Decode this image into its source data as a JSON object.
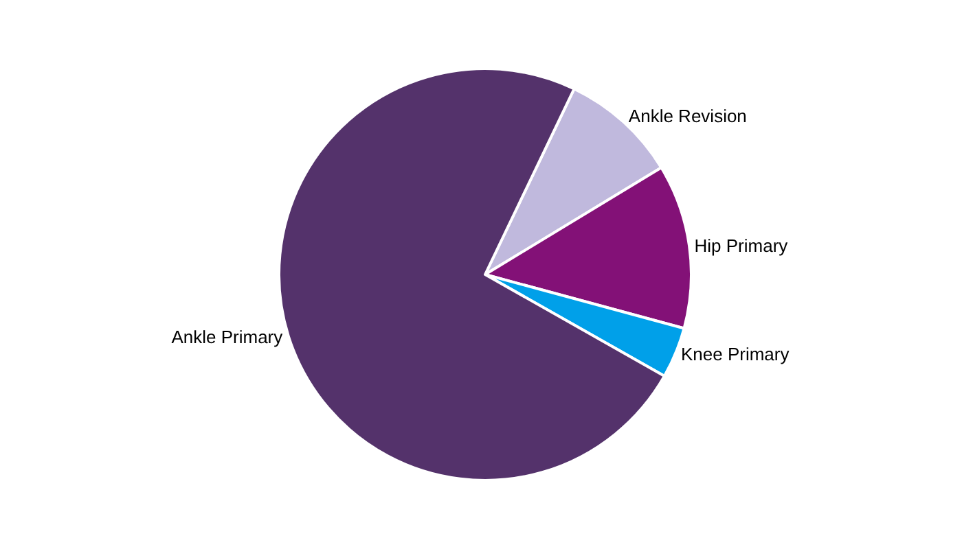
{
  "chart_data": {
    "type": "pie",
    "categories": [
      "Ankle Revision",
      "Hip Primary",
      "Knee Primary",
      "Ankle Primary"
    ],
    "values": [
      9.2,
      12.9,
      4.0,
      73.9
    ],
    "colors": [
      "#c0b9dd",
      "#831177",
      "#00a0e9",
      "#54326b"
    ],
    "legend": false
  }
}
